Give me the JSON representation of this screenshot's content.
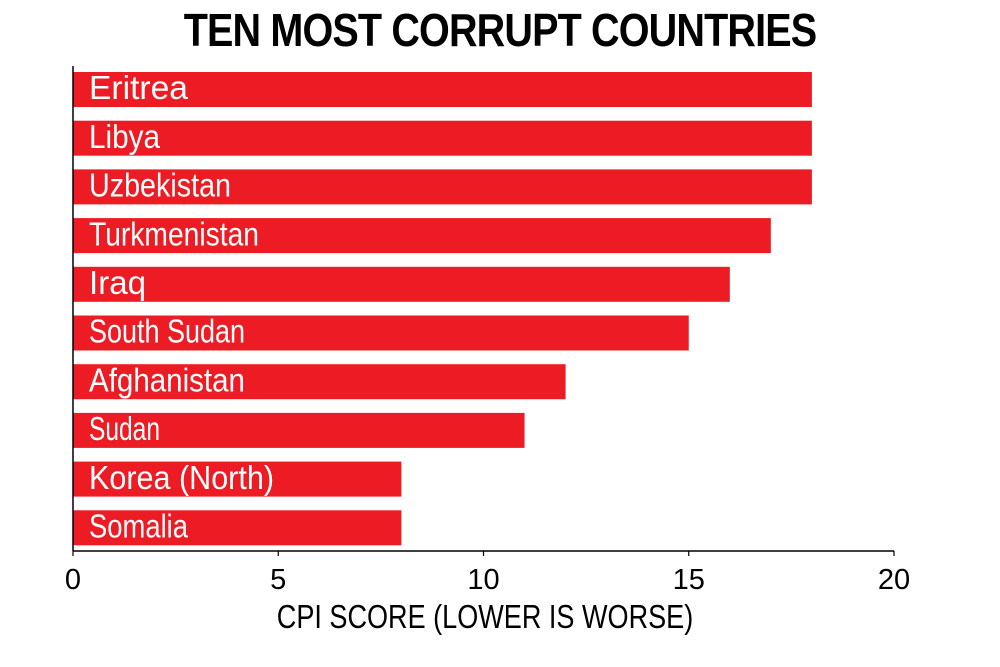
{
  "chart_data": {
    "type": "bar",
    "orientation": "horizontal",
    "title": "TEN MOST CORRUPT COUNTRIES",
    "xlabel": "CPI SCORE (LOWER IS WORSE)",
    "ylabel": "",
    "categories": [
      "Eritrea",
      "Libya",
      "Uzbekistan",
      "Turkmenistan",
      "Iraq",
      "South Sudan",
      "Afghanistan",
      "Sudan",
      "Korea (North)",
      "Somalia"
    ],
    "values": [
      18,
      18,
      18,
      17,
      16,
      15,
      12,
      11,
      8,
      8
    ],
    "xlim": [
      0,
      20
    ],
    "xticks": [
      "0",
      "5",
      "10",
      "15",
      "20"
    ],
    "grid": false,
    "legend": "none",
    "bar_color": "#ed1c24",
    "label_color": "#ffffff",
    "axis_color": "#000000"
  }
}
